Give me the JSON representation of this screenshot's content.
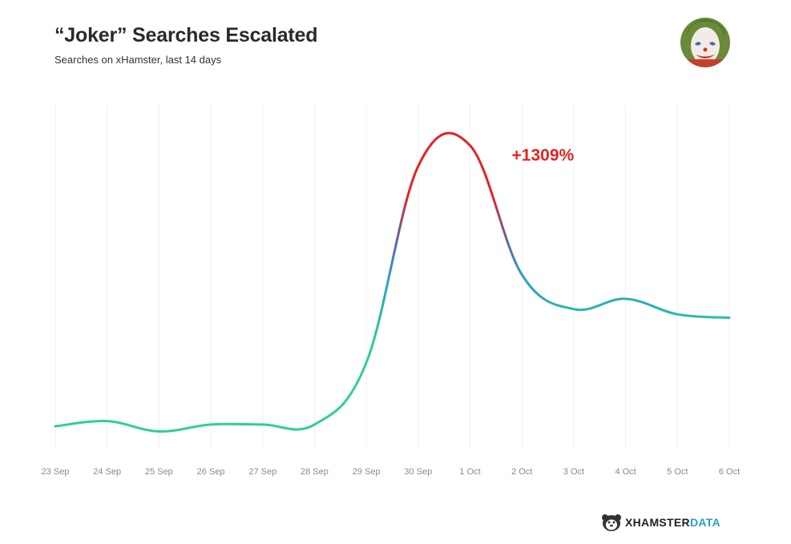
{
  "chart_data": {
    "type": "line",
    "title": "“Joker” Searches Escalated",
    "subtitle": "Searches on xHamster, last 14 days",
    "categories": [
      "23 Sep",
      "24 Sep",
      "25 Sep",
      "26 Sep",
      "27 Sep",
      "28 Sep",
      "29 Sep",
      "30 Sep",
      "1 Oct",
      "2 Oct",
      "3 Oct",
      "4 Oct",
      "5 Oct",
      "6 Oct"
    ],
    "series": [
      {
        "values": [
          1.3,
          1.6,
          1.0,
          1.4,
          1.4,
          1.4,
          5.0,
          16.4,
          17.6,
          10.1,
          8.1,
          8.7,
          7.8,
          7.6
        ]
      }
    ],
    "annotation": {
      "text": "+1309%",
      "category": "1 Oct"
    },
    "ylim": [
      0,
      20
    ],
    "grid": "vertical",
    "colors": {
      "low": "#2ecf95",
      "mid": "#2b9fc2",
      "high": "#e42322",
      "annotation": "#e42322",
      "gridline": "#efefef",
      "tick_text": "#8a8a8a"
    }
  },
  "avatar": {
    "icon": "joker-face-icon"
  },
  "brand": {
    "icon": "hamster-logo-icon",
    "name_main": "XHAMSTER",
    "name_accent": "DATA"
  }
}
